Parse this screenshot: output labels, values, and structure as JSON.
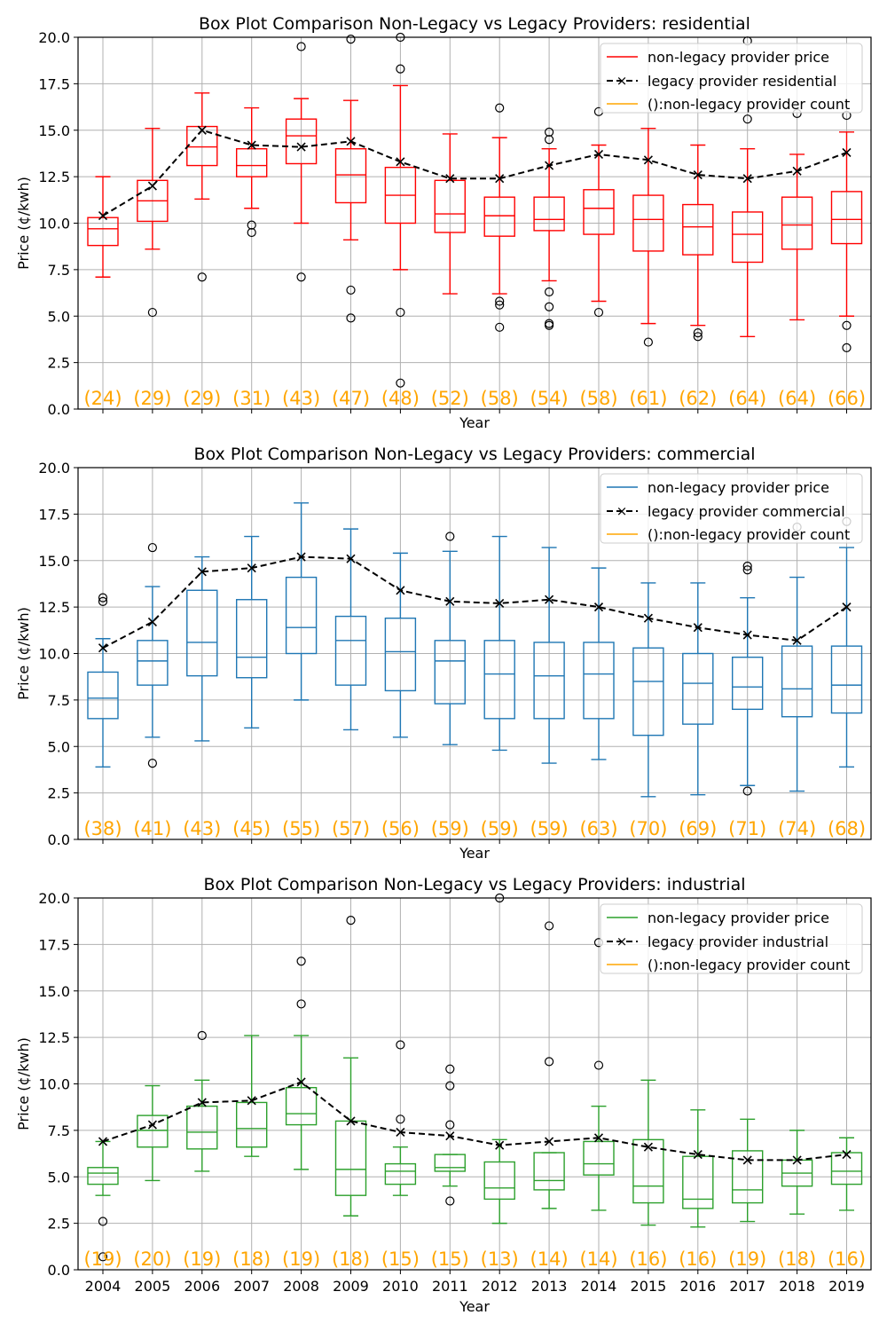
{
  "figure": {
    "shared_xlabel": "Year",
    "shared_ylabel": "Price (¢/kwh)"
  },
  "chart_data": [
    {
      "type": "box",
      "title": "Box Plot Comparison Non-Legacy vs Legacy Providers: residential",
      "xlabel": "Year",
      "ylabel": "Price (¢/kwh)",
      "ylim": [
        0,
        20
      ],
      "yticks": [
        "0.0",
        "2.5",
        "5.0",
        "7.5",
        "10.0",
        "12.5",
        "15.0",
        "17.5",
        "20.0"
      ],
      "grid": true,
      "show_xtick_labels": false,
      "box_color": "#ff0000",
      "legend": {
        "placement": "top-right",
        "entries": [
          {
            "label": "non-legacy provider price",
            "color": "#ff0000",
            "style": "solid"
          },
          {
            "label": "legacy provider residential",
            "color": "#000000",
            "style": "dashed-x"
          },
          {
            "label": "():non-legacy provider count",
            "color": "#ffa500",
            "style": "solid"
          }
        ]
      },
      "categories": [
        "2004",
        "2005",
        "2006",
        "2007",
        "2008",
        "2009",
        "2010",
        "2011",
        "2012",
        "2013",
        "2014",
        "2015",
        "2016",
        "2017",
        "2018",
        "2019"
      ],
      "boxes": [
        {
          "whislo": 7.1,
          "q1": 8.8,
          "med": 9.7,
          "q3": 10.3,
          "whishi": 12.5,
          "fliers": []
        },
        {
          "whislo": 8.6,
          "q1": 10.1,
          "med": 11.2,
          "q3": 12.3,
          "whishi": 15.1,
          "fliers": [
            5.2
          ]
        },
        {
          "whislo": 11.3,
          "q1": 13.1,
          "med": 14.1,
          "q3": 15.2,
          "whishi": 17.0,
          "fliers": [
            7.1
          ]
        },
        {
          "whislo": 10.8,
          "q1": 12.5,
          "med": 13.1,
          "q3": 14.0,
          "whishi": 16.2,
          "fliers": [
            9.9,
            9.5
          ]
        },
        {
          "whislo": 10.0,
          "q1": 13.2,
          "med": 14.7,
          "q3": 15.6,
          "whishi": 16.7,
          "fliers": [
            19.5,
            7.1
          ]
        },
        {
          "whislo": 9.1,
          "q1": 11.1,
          "med": 12.6,
          "q3": 14.0,
          "whishi": 16.6,
          "fliers": [
            19.9,
            6.4,
            4.9
          ]
        },
        {
          "whislo": 7.5,
          "q1": 10.0,
          "med": 11.5,
          "q3": 13.0,
          "whishi": 17.4,
          "fliers": [
            20.0,
            18.3,
            5.2,
            1.4
          ]
        },
        {
          "whislo": 6.2,
          "q1": 9.5,
          "med": 10.5,
          "q3": 12.3,
          "whishi": 14.8,
          "fliers": []
        },
        {
          "whislo": 6.2,
          "q1": 9.3,
          "med": 10.4,
          "q3": 11.4,
          "whishi": 14.6,
          "fliers": [
            16.2,
            5.8,
            5.6,
            4.4
          ]
        },
        {
          "whislo": 6.9,
          "q1": 9.6,
          "med": 10.2,
          "q3": 11.4,
          "whishi": 14.0,
          "fliers": [
            14.9,
            14.5,
            6.3,
            5.5,
            4.6,
            4.5
          ]
        },
        {
          "whislo": 5.8,
          "q1": 9.4,
          "med": 10.8,
          "q3": 11.8,
          "whishi": 14.2,
          "fliers": [
            16.0,
            5.2
          ]
        },
        {
          "whislo": 4.6,
          "q1": 8.5,
          "med": 10.2,
          "q3": 11.5,
          "whishi": 15.1,
          "fliers": [
            3.6
          ]
        },
        {
          "whislo": 4.5,
          "q1": 8.3,
          "med": 9.8,
          "q3": 11.0,
          "whishi": 14.2,
          "fliers": [
            4.1,
            3.9
          ]
        },
        {
          "whislo": 3.9,
          "q1": 7.9,
          "med": 9.4,
          "q3": 10.6,
          "whishi": 14.0,
          "fliers": [
            19.8,
            15.6
          ]
        },
        {
          "whislo": 4.8,
          "q1": 8.6,
          "med": 9.9,
          "q3": 11.4,
          "whishi": 13.7,
          "fliers": [
            15.9
          ]
        },
        {
          "whislo": 5.0,
          "q1": 8.9,
          "med": 10.2,
          "q3": 11.7,
          "whishi": 14.9,
          "fliers": [
            15.8,
            4.5,
            3.3
          ]
        }
      ],
      "legacy_series": {
        "name": "legacy provider residential",
        "values": [
          10.4,
          12.0,
          15.0,
          14.2,
          14.1,
          14.4,
          13.3,
          12.4,
          12.4,
          13.1,
          13.7,
          13.4,
          12.6,
          12.4,
          12.8,
          13.8
        ]
      },
      "counts": [
        "(24)",
        "(29)",
        "(29)",
        "(31)",
        "(43)",
        "(47)",
        "(48)",
        "(52)",
        "(58)",
        "(54)",
        "(58)",
        "(61)",
        "(62)",
        "(64)",
        "(64)",
        "(66)"
      ]
    },
    {
      "type": "box",
      "title": "Box Plot Comparison Non-Legacy vs Legacy Providers: commercial",
      "xlabel": "Year",
      "ylabel": "Price (¢/kwh)",
      "ylim": [
        0,
        20
      ],
      "yticks": [
        "0.0",
        "2.5",
        "5.0",
        "7.5",
        "10.0",
        "12.5",
        "15.0",
        "17.5",
        "20.0"
      ],
      "grid": true,
      "show_xtick_labels": false,
      "box_color": "#1f77b4",
      "legend": {
        "placement": "top-right",
        "entries": [
          {
            "label": "non-legacy provider price",
            "color": "#1f77b4",
            "style": "solid"
          },
          {
            "label": "legacy provider commercial",
            "color": "#000000",
            "style": "dashed-x"
          },
          {
            "label": "():non-legacy provider count",
            "color": "#ffa500",
            "style": "solid"
          }
        ]
      },
      "categories": [
        "2004",
        "2005",
        "2006",
        "2007",
        "2008",
        "2009",
        "2010",
        "2011",
        "2012",
        "2013",
        "2014",
        "2015",
        "2016",
        "2017",
        "2018",
        "2019"
      ],
      "boxes": [
        {
          "whislo": 3.9,
          "q1": 6.5,
          "med": 7.6,
          "q3": 9.0,
          "whishi": 10.8,
          "fliers": [
            13.0,
            12.8
          ]
        },
        {
          "whislo": 5.5,
          "q1": 8.3,
          "med": 9.6,
          "q3": 10.7,
          "whishi": 13.6,
          "fliers": [
            15.7,
            4.1
          ]
        },
        {
          "whislo": 5.3,
          "q1": 8.8,
          "med": 10.6,
          "q3": 13.4,
          "whishi": 15.2,
          "fliers": []
        },
        {
          "whislo": 6.0,
          "q1": 8.7,
          "med": 9.8,
          "q3": 12.9,
          "whishi": 16.3,
          "fliers": []
        },
        {
          "whislo": 7.5,
          "q1": 10.0,
          "med": 11.4,
          "q3": 14.1,
          "whishi": 18.1,
          "fliers": []
        },
        {
          "whislo": 5.9,
          "q1": 8.3,
          "med": 10.7,
          "q3": 12.0,
          "whishi": 16.7,
          "fliers": []
        },
        {
          "whislo": 5.5,
          "q1": 8.0,
          "med": 10.1,
          "q3": 11.9,
          "whishi": 15.4,
          "fliers": []
        },
        {
          "whislo": 5.1,
          "q1": 7.3,
          "med": 9.6,
          "q3": 10.7,
          "whishi": 15.5,
          "fliers": [
            16.3
          ]
        },
        {
          "whislo": 4.8,
          "q1": 6.5,
          "med": 8.9,
          "q3": 10.7,
          "whishi": 16.3,
          "fliers": []
        },
        {
          "whislo": 4.1,
          "q1": 6.5,
          "med": 8.8,
          "q3": 10.6,
          "whishi": 15.7,
          "fliers": []
        },
        {
          "whislo": 4.3,
          "q1": 6.5,
          "med": 8.9,
          "q3": 10.6,
          "whishi": 14.6,
          "fliers": []
        },
        {
          "whislo": 2.3,
          "q1": 5.6,
          "med": 8.5,
          "q3": 10.3,
          "whishi": 13.8,
          "fliers": []
        },
        {
          "whislo": 2.4,
          "q1": 6.2,
          "med": 8.4,
          "q3": 10.0,
          "whishi": 13.8,
          "fliers": []
        },
        {
          "whislo": 2.9,
          "q1": 7.0,
          "med": 8.2,
          "q3": 9.8,
          "whishi": 13.0,
          "fliers": [
            14.7,
            14.5,
            2.6
          ]
        },
        {
          "whislo": 2.6,
          "q1": 6.6,
          "med": 8.1,
          "q3": 10.4,
          "whishi": 14.1,
          "fliers": [
            16.8
          ]
        },
        {
          "whislo": 3.9,
          "q1": 6.8,
          "med": 8.3,
          "q3": 10.4,
          "whishi": 15.7,
          "fliers": [
            17.1
          ]
        }
      ],
      "legacy_series": {
        "name": "legacy provider commercial",
        "values": [
          10.3,
          11.7,
          14.4,
          14.6,
          15.2,
          15.1,
          13.4,
          12.8,
          12.7,
          12.9,
          12.5,
          11.9,
          11.4,
          11.0,
          10.7,
          12.5
        ]
      },
      "counts": [
        "(38)",
        "(41)",
        "(43)",
        "(45)",
        "(55)",
        "(57)",
        "(56)",
        "(59)",
        "(59)",
        "(59)",
        "(63)",
        "(70)",
        "(69)",
        "(71)",
        "(74)",
        "(68)"
      ]
    },
    {
      "type": "box",
      "title": "Box Plot Comparison Non-Legacy vs Legacy Providers: industrial",
      "xlabel": "Year",
      "ylabel": "Price (¢/kwh)",
      "ylim": [
        0,
        20
      ],
      "yticks": [
        "0.0",
        "2.5",
        "5.0",
        "7.5",
        "10.0",
        "12.5",
        "15.0",
        "17.5",
        "20.0"
      ],
      "grid": true,
      "show_xtick_labels": true,
      "box_color": "#2ca02c",
      "legend": {
        "placement": "top-right",
        "entries": [
          {
            "label": "non-legacy provider price",
            "color": "#2ca02c",
            "style": "solid"
          },
          {
            "label": "legacy provider industrial",
            "color": "#000000",
            "style": "dashed-x"
          },
          {
            "label": "():non-legacy provider count",
            "color": "#ffa500",
            "style": "solid"
          }
        ]
      },
      "categories": [
        "2004",
        "2005",
        "2006",
        "2007",
        "2008",
        "2009",
        "2010",
        "2011",
        "2012",
        "2013",
        "2014",
        "2015",
        "2016",
        "2017",
        "2018",
        "2019"
      ],
      "boxes": [
        {
          "whislo": 4.0,
          "q1": 4.6,
          "med": 5.2,
          "q3": 5.5,
          "whishi": 6.9,
          "fliers": [
            2.6,
            0.7
          ]
        },
        {
          "whislo": 4.8,
          "q1": 6.6,
          "med": 7.5,
          "q3": 8.3,
          "whishi": 9.9,
          "fliers": []
        },
        {
          "whislo": 5.3,
          "q1": 6.5,
          "med": 7.4,
          "q3": 8.8,
          "whishi": 10.2,
          "fliers": [
            12.6
          ]
        },
        {
          "whislo": 6.1,
          "q1": 6.6,
          "med": 7.6,
          "q3": 9.0,
          "whishi": 12.6,
          "fliers": []
        },
        {
          "whislo": 5.4,
          "q1": 7.8,
          "med": 8.4,
          "q3": 9.8,
          "whishi": 12.6,
          "fliers": [
            16.6,
            14.3
          ]
        },
        {
          "whislo": 2.9,
          "q1": 4.0,
          "med": 5.4,
          "q3": 8.0,
          "whishi": 11.4,
          "fliers": [
            18.8
          ]
        },
        {
          "whislo": 4.0,
          "q1": 4.6,
          "med": 5.3,
          "q3": 5.7,
          "whishi": 6.6,
          "fliers": [
            12.1,
            8.1
          ]
        },
        {
          "whislo": 4.5,
          "q1": 5.3,
          "med": 5.5,
          "q3": 6.2,
          "whishi": 6.2,
          "fliers": [
            10.8,
            9.9,
            7.8,
            3.7
          ]
        },
        {
          "whislo": 2.5,
          "q1": 3.8,
          "med": 4.4,
          "q3": 5.8,
          "whishi": 7.0,
          "fliers": [
            20.0
          ]
        },
        {
          "whislo": 3.3,
          "q1": 4.3,
          "med": 4.8,
          "q3": 6.3,
          "whishi": 6.3,
          "fliers": [
            18.5,
            11.2
          ]
        },
        {
          "whislo": 3.2,
          "q1": 5.1,
          "med": 5.7,
          "q3": 6.9,
          "whishi": 8.8,
          "fliers": [
            17.6,
            11.0
          ]
        },
        {
          "whislo": 2.4,
          "q1": 3.6,
          "med": 4.5,
          "q3": 7.0,
          "whishi": 10.2,
          "fliers": []
        },
        {
          "whislo": 2.3,
          "q1": 3.3,
          "med": 3.8,
          "q3": 6.1,
          "whishi": 8.6,
          "fliers": []
        },
        {
          "whislo": 2.6,
          "q1": 3.6,
          "med": 4.3,
          "q3": 6.4,
          "whishi": 8.1,
          "fliers": []
        },
        {
          "whislo": 3.0,
          "q1": 4.5,
          "med": 5.2,
          "q3": 5.9,
          "whishi": 7.5,
          "fliers": []
        },
        {
          "whislo": 3.2,
          "q1": 4.6,
          "med": 5.3,
          "q3": 6.3,
          "whishi": 7.1,
          "fliers": []
        }
      ],
      "legacy_series": {
        "name": "legacy provider industrial",
        "values": [
          6.9,
          7.8,
          9.0,
          9.1,
          10.1,
          8.0,
          7.4,
          7.2,
          6.7,
          6.9,
          7.1,
          6.6,
          6.2,
          5.9,
          5.9,
          6.2
        ]
      },
      "counts": [
        "(19)",
        "(20)",
        "(19)",
        "(18)",
        "(19)",
        "(18)",
        "(15)",
        "(15)",
        "(13)",
        "(14)",
        "(14)",
        "(16)",
        "(16)",
        "(19)",
        "(18)",
        "(16)"
      ]
    }
  ]
}
